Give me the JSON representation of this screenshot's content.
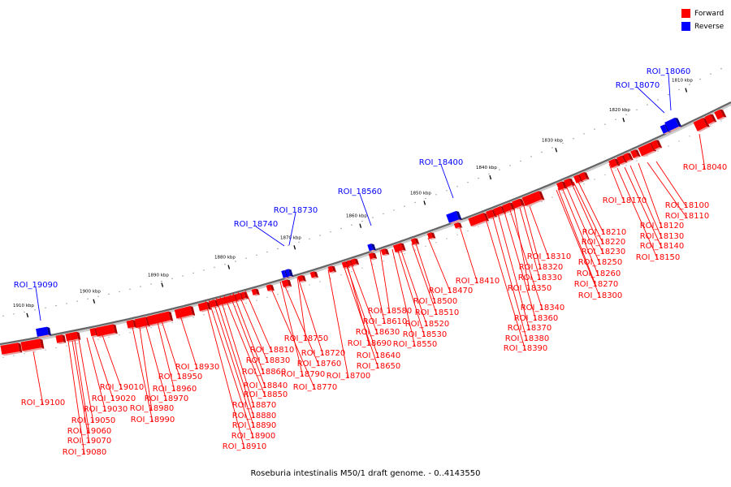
{
  "caption": "Roseburia intestinalis M50/1 draft genome. - 0..4143550",
  "legend": [
    {
      "label": "Forward",
      "color": "#ff0000"
    },
    {
      "label": "Reverse",
      "color": "#0000ff"
    }
  ],
  "scale_ticks": [
    "1810 kbp",
    "1820 kbp",
    "1830 kbp",
    "1840 kbp",
    "1850 kbp",
    "1860 kbp",
    "1870 kbp",
    "1880 kbp",
    "1890 kbp",
    "1900 kbp",
    "1910 kbp"
  ],
  "reverse_labels": [
    "ROI_18060",
    "ROI_18070",
    "ROI_18400",
    "ROI_18560",
    "ROI_18730",
    "ROI_18740",
    "ROI_19090"
  ],
  "forward_labels": [
    "ROI_18040",
    "ROI_18100",
    "ROI_18110",
    "ROI_18120",
    "ROI_18130",
    "ROI_18140",
    "ROI_18150",
    "ROI_18170",
    "ROI_18210",
    "ROI_18220",
    "ROI_18230",
    "ROI_18250",
    "ROI_18260",
    "ROI_18270",
    "ROI_18300",
    "ROI_18310",
    "ROI_18320",
    "ROI_18330",
    "ROI_18350",
    "ROI_18340",
    "ROI_18360",
    "ROI_18370",
    "ROI_18380",
    "ROI_18390",
    "ROI_18410",
    "ROI_18470",
    "ROI_18500",
    "ROI_18510",
    "ROI_18520",
    "ROI_18530",
    "ROI_18550",
    "ROI_18580",
    "ROI_18610",
    "ROI_18630",
    "ROI_18690",
    "ROI_18640",
    "ROI_18650",
    "ROI_18700",
    "ROI_18750",
    "ROI_18720",
    "ROI_18760",
    "ROI_18790",
    "ROI_18770",
    "ROI_18810",
    "ROI_18830",
    "ROI_18860",
    "ROI_18840",
    "ROI_18850",
    "ROI_18870",
    "ROI_18880",
    "ROI_18890",
    "ROI_18900",
    "ROI_18910",
    "ROI_18930",
    "ROI_18950",
    "ROI_18960",
    "ROI_18970",
    "ROI_18980",
    "ROI_18990",
    "ROI_19010",
    "ROI_19020",
    "ROI_19030",
    "ROI_19050",
    "ROI_19060",
    "ROI_19070",
    "ROI_19080",
    "ROI_19100"
  ]
}
